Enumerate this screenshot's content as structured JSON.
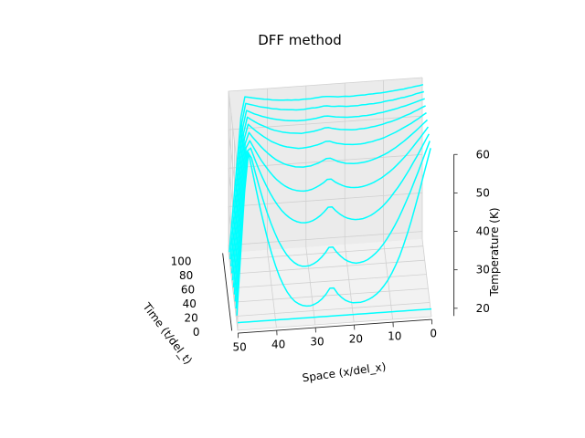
{
  "chart_data": {
    "type": "line",
    "projection": "3d-wireframe",
    "title": "DFF method",
    "xlabel": "Space (x/del_x)",
    "ylabel": "Time (t/del_t)",
    "zlabel": "Temperature (K)",
    "x_ticks": [
      "50",
      "40",
      "30",
      "20",
      "10",
      "0"
    ],
    "y_ticks": [
      "0",
      "20",
      "40",
      "60",
      "80",
      "100"
    ],
    "z_ticks": [
      "20",
      "30",
      "40",
      "50",
      "60"
    ],
    "xlim": [
      0,
      50
    ],
    "ylim": [
      0,
      110
    ],
    "zlim": [
      18,
      60
    ],
    "grid": true,
    "line_color": "#00ffff",
    "boundary_temperature_left": 60,
    "boundary_temperature_right": 20,
    "initial_temperature": 20,
    "source_position": 26,
    "source_temperature": 60,
    "series": [
      {
        "time": 0,
        "values": [
          20,
          20,
          20,
          20,
          20,
          20,
          20,
          20,
          20,
          20,
          20,
          20,
          20,
          20,
          20,
          20,
          20,
          20,
          20,
          20,
          20,
          20,
          20,
          20,
          20,
          20,
          20,
          20,
          20,
          20,
          20,
          20,
          20,
          20,
          20,
          20,
          20,
          20,
          20,
          20,
          20,
          20,
          20,
          20,
          20,
          20,
          20,
          20,
          20,
          20,
          20
        ]
      },
      {
        "time": 10,
        "values": [
          60,
          56.2,
          52.4,
          48.6,
          44.9,
          41.4,
          38.2,
          35.2,
          32.5,
          30.2,
          28.2,
          26.5,
          25.1,
          23.9,
          23,
          22.3,
          21.8,
          21.4,
          21.2,
          21.2,
          21.2,
          21.5,
          22,
          22.8,
          23.9,
          25.4,
          25.4,
          23.9,
          22.8,
          22,
          21.5,
          21.2,
          21.2,
          21.4,
          21.9,
          22.6,
          23.7,
          25.2,
          27.1,
          29.4,
          32.2,
          35.4,
          39.1,
          43.2,
          47.6,
          52.3,
          57.2,
          62.2,
          52,
          36,
          20
        ]
      },
      {
        "time": 20,
        "values": [
          60,
          57.4,
          54.8,
          52.2,
          49.7,
          47.2,
          44.9,
          42.7,
          40.6,
          38.7,
          37,
          35.4,
          34,
          32.8,
          31.8,
          31,
          30.3,
          29.9,
          29.7,
          29.6,
          29.8,
          30.2,
          30.8,
          31.7,
          32.8,
          34.2,
          34.2,
          32.8,
          31.7,
          30.8,
          30.2,
          29.8,
          29.7,
          29.8,
          30.2,
          30.9,
          31.9,
          33.2,
          34.8,
          36.7,
          39,
          41.6,
          44.5,
          47.7,
          51.2,
          54.9,
          58.9,
          60.5,
          48.5,
          34.3,
          20
        ]
      },
      {
        "time": 30,
        "values": [
          60,
          58.2,
          56.4,
          54.6,
          52.9,
          51.2,
          49.6,
          48.1,
          46.7,
          45.4,
          44.1,
          43,
          42,
          41.2,
          40.5,
          39.9,
          39.5,
          39.2,
          39.1,
          39.1,
          39.3,
          39.6,
          40.1,
          40.8,
          41.7,
          42.8,
          42.8,
          41.7,
          40.8,
          40.1,
          39.6,
          39.3,
          39.2,
          39.3,
          39.6,
          40.1,
          40.8,
          41.7,
          42.8,
          44.2,
          45.8,
          47.6,
          49.6,
          51.8,
          54.2,
          56.8,
          59.6,
          58.8,
          46.9,
          33.4,
          20
        ]
      },
      {
        "time": 40,
        "values": [
          60,
          58.7,
          57.4,
          56.2,
          55,
          53.8,
          52.7,
          51.7,
          50.7,
          49.8,
          49,
          48.3,
          47.6,
          47.1,
          46.6,
          46.2,
          45.9,
          45.7,
          45.6,
          45.6,
          45.7,
          45.9,
          46.3,
          46.8,
          47.4,
          48.2,
          48.2,
          47.4,
          46.8,
          46.3,
          45.9,
          45.7,
          45.6,
          45.7,
          45.9,
          46.2,
          46.7,
          47.3,
          48.1,
          49,
          50.1,
          51.4,
          52.8,
          54.3,
          56,
          57.8,
          59.7,
          57.9,
          45.9,
          32.9,
          20
        ]
      },
      {
        "time": 50,
        "values": [
          60,
          59.1,
          58.2,
          57.3,
          56.5,
          55.7,
          54.9,
          54.2,
          53.5,
          52.9,
          52.3,
          51.8,
          51.4,
          51,
          50.7,
          50.4,
          50.2,
          50.1,
          50,
          50,
          50.1,
          50.2,
          50.5,
          50.8,
          51.3,
          51.8,
          51.8,
          51.3,
          50.8,
          50.5,
          50.2,
          50.1,
          50,
          50.1,
          50.2,
          50.5,
          50.8,
          51.2,
          51.8,
          52.4,
          53.2,
          54.1,
          55.1,
          56.2,
          57.4,
          58.6,
          60,
          57.2,
          45.2,
          32.6,
          20
        ]
      },
      {
        "time": 60,
        "values": [
          60,
          59.4,
          58.7,
          58.1,
          57.5,
          57,
          56.5,
          56,
          55.5,
          55.1,
          54.7,
          54.3,
          54,
          53.8,
          53.5,
          53.4,
          53.2,
          53.1,
          53.1,
          53.1,
          53.2,
          53.3,
          53.5,
          53.7,
          54,
          54.4,
          54.4,
          54,
          53.7,
          53.5,
          53.3,
          53.2,
          53.1,
          53.1,
          53.3,
          53.5,
          53.7,
          54,
          54.4,
          54.9,
          55.4,
          56.1,
          56.8,
          57.6,
          58.4,
          59.3,
          60.3,
          56.6,
          44.6,
          32.3,
          20
        ]
      },
      {
        "time": 70,
        "values": [
          60,
          59.6,
          59.1,
          58.7,
          58.2,
          57.9,
          57.5,
          57.1,
          56.8,
          56.5,
          56.3,
          56,
          55.8,
          55.6,
          55.5,
          55.3,
          55.2,
          55.2,
          55.1,
          55.1,
          55.2,
          55.3,
          55.4,
          55.6,
          55.8,
          56.1,
          56.1,
          55.8,
          55.6,
          55.4,
          55.3,
          55.2,
          55.1,
          55.2,
          55.3,
          55.4,
          55.6,
          55.8,
          56.1,
          56.4,
          56.8,
          57.3,
          57.8,
          58.3,
          58.9,
          59.6,
          60.3,
          56.1,
          44.1,
          32,
          20
        ]
      },
      {
        "time": 80,
        "values": [
          60,
          59.7,
          59.4,
          59.1,
          58.8,
          58.5,
          58.3,
          58,
          57.8,
          57.6,
          57.4,
          57.2,
          57.1,
          56.9,
          56.8,
          56.7,
          56.7,
          56.6,
          56.6,
          56.6,
          56.6,
          56.7,
          56.8,
          56.9,
          57.1,
          57.3,
          57.3,
          57.1,
          56.9,
          56.8,
          56.7,
          56.6,
          56.6,
          56.6,
          56.7,
          56.8,
          56.9,
          57.1,
          57.3,
          57.5,
          57.8,
          58.1,
          58.4,
          58.8,
          59.2,
          59.7,
          60.2,
          55.6,
          43.7,
          31.8,
          20
        ]
      },
      {
        "time": 90,
        "values": [
          60,
          59.8,
          59.6,
          59.3,
          59.1,
          58.9,
          58.8,
          58.6,
          58.4,
          58.3,
          58.2,
          58,
          57.9,
          57.8,
          57.8,
          57.7,
          57.7,
          57.6,
          57.6,
          57.6,
          57.6,
          57.7,
          57.8,
          57.8,
          57.9,
          58.1,
          58.1,
          57.9,
          57.8,
          57.8,
          57.7,
          57.6,
          57.6,
          57.6,
          57.7,
          57.8,
          57.9,
          58,
          58.2,
          58.3,
          58.6,
          58.8,
          59,
          59.3,
          59.6,
          59.9,
          60.2,
          55.2,
          43.4,
          31.6,
          20
        ]
      },
      {
        "time": 100,
        "values": [
          60,
          59.8,
          59.7,
          59.5,
          59.4,
          59.2,
          59.1,
          59,
          58.9,
          58.8,
          58.7,
          58.6,
          58.6,
          58.5,
          58.5,
          58.4,
          58.4,
          58.4,
          58.3,
          58.3,
          58.4,
          58.4,
          58.4,
          58.5,
          58.6,
          58.7,
          58.7,
          58.6,
          58.5,
          58.4,
          58.4,
          58.4,
          58.3,
          58.4,
          58.4,
          58.5,
          58.5,
          58.6,
          58.7,
          58.8,
          59,
          59.1,
          59.3,
          59.5,
          59.7,
          59.9,
          60.1,
          54.9,
          43.2,
          31.5,
          20
        ]
      }
    ]
  }
}
